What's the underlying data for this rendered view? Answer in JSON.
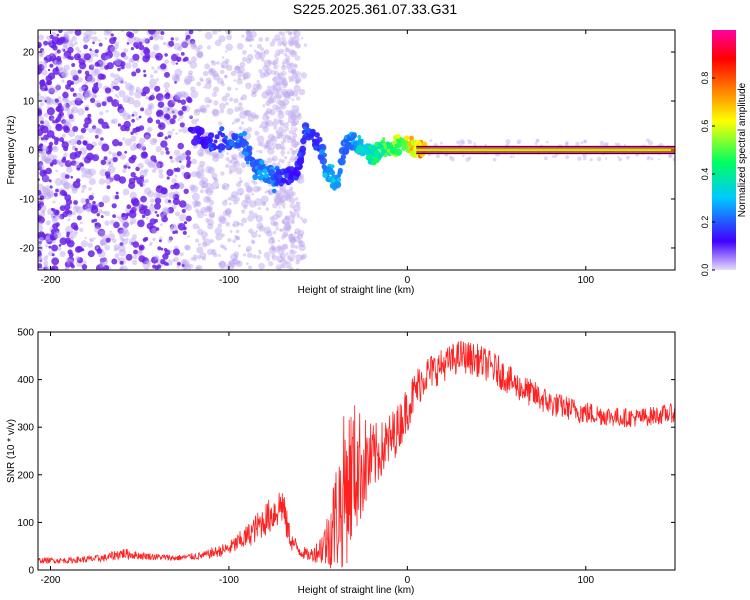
{
  "title": "S225.2025.361.07.33.G31",
  "chart_data": [
    {
      "type": "scatter",
      "name": "spectrogram",
      "title": "S225.2025.361.07.33.G31",
      "xlabel": "Height of straight line (km)",
      "ylabel": "Frequency (Hz)",
      "xlim": [
        -207,
        150
      ],
      "ylim": [
        -24.5,
        24.5
      ],
      "xticks": [
        -200,
        -100,
        0,
        100
      ],
      "yticks": [
        -20,
        -10,
        0,
        10,
        20
      ],
      "colorbar": {
        "label": "Normalized spectral amplitude",
        "range": [
          0,
          1
        ],
        "ticks": [
          0.0,
          0.2,
          0.4,
          0.6,
          0.8
        ],
        "colors": [
          "#c8b4f0",
          "#4000ff",
          "#00c8ff",
          "#00ff60",
          "#ffff00",
          "#ff8000",
          "#ff0000",
          "#ff00a0"
        ]
      },
      "line": {
        "y": 0,
        "x_from": 5,
        "x_to": 150
      },
      "ridge": [
        {
          "x": -120,
          "y": 3,
          "v": 0.15
        },
        {
          "x": -110,
          "y": 2,
          "v": 0.2
        },
        {
          "x": -100,
          "y": 2,
          "v": 0.22
        },
        {
          "x": -92,
          "y": 1,
          "v": 0.25
        },
        {
          "x": -85,
          "y": -3,
          "v": 0.25
        },
        {
          "x": -78,
          "y": -5,
          "v": 0.28
        },
        {
          "x": -70,
          "y": -6,
          "v": 0.2
        },
        {
          "x": -62,
          "y": -5,
          "v": 0.18
        },
        {
          "x": -57,
          "y": 4,
          "v": 0.22
        },
        {
          "x": -50,
          "y": 2,
          "v": 0.2
        },
        {
          "x": -45,
          "y": -4,
          "v": 0.3
        },
        {
          "x": -40,
          "y": -7,
          "v": 0.32
        },
        {
          "x": -35,
          "y": 1,
          "v": 0.25
        },
        {
          "x": -30,
          "y": 2,
          "v": 0.28
        },
        {
          "x": -25,
          "y": 0,
          "v": 0.35
        },
        {
          "x": -20,
          "y": -1,
          "v": 0.4
        },
        {
          "x": -15,
          "y": 0,
          "v": 0.45
        },
        {
          "x": -10,
          "y": 0,
          "v": 0.5
        },
        {
          "x": -5,
          "y": 1,
          "v": 0.55
        },
        {
          "x": 0,
          "y": 1,
          "v": 0.6
        },
        {
          "x": 5,
          "y": 0,
          "v": 0.7
        },
        {
          "x": 10,
          "y": 0,
          "v": 0.8
        }
      ]
    },
    {
      "type": "line",
      "name": "snr",
      "xlabel": "Height of straight line (km)",
      "ylabel": "SNR (10 * v/v)",
      "xlim": [
        -207,
        150
      ],
      "ylim": [
        0,
        500
      ],
      "xticks": [
        -200,
        -100,
        0,
        100
      ],
      "yticks": [
        0,
        100,
        200,
        300,
        400,
        500
      ],
      "color": "#ff2020",
      "x": [
        -207,
        -190,
        -170,
        -160,
        -150,
        -130,
        -115,
        -100,
        -90,
        -80,
        -75,
        -70,
        -68,
        -65,
        -60,
        -55,
        -50,
        -45,
        -40,
        -35,
        -30,
        -25,
        -20,
        -15,
        -10,
        -5,
        0,
        5,
        10,
        20,
        30,
        40,
        50,
        60,
        70,
        80,
        90,
        100,
        110,
        120,
        130,
        140,
        150
      ],
      "y": [
        20,
        20,
        25,
        35,
        30,
        25,
        30,
        45,
        70,
        105,
        120,
        140,
        100,
        60,
        40,
        30,
        40,
        60,
        110,
        170,
        210,
        220,
        230,
        250,
        270,
        300,
        340,
        380,
        410,
        430,
        450,
        440,
        420,
        390,
        370,
        350,
        340,
        330,
        325,
        320,
        320,
        325,
        330
      ],
      "noise": [
        6,
        6,
        8,
        12,
        8,
        6,
        8,
        15,
        25,
        35,
        40,
        45,
        35,
        20,
        15,
        12,
        25,
        60,
        120,
        170,
        150,
        110,
        80,
        60,
        60,
        50,
        50,
        45,
        40,
        35,
        35,
        35,
        35,
        30,
        30,
        28,
        25,
        25,
        22,
        20,
        20,
        20,
        20
      ]
    }
  ]
}
